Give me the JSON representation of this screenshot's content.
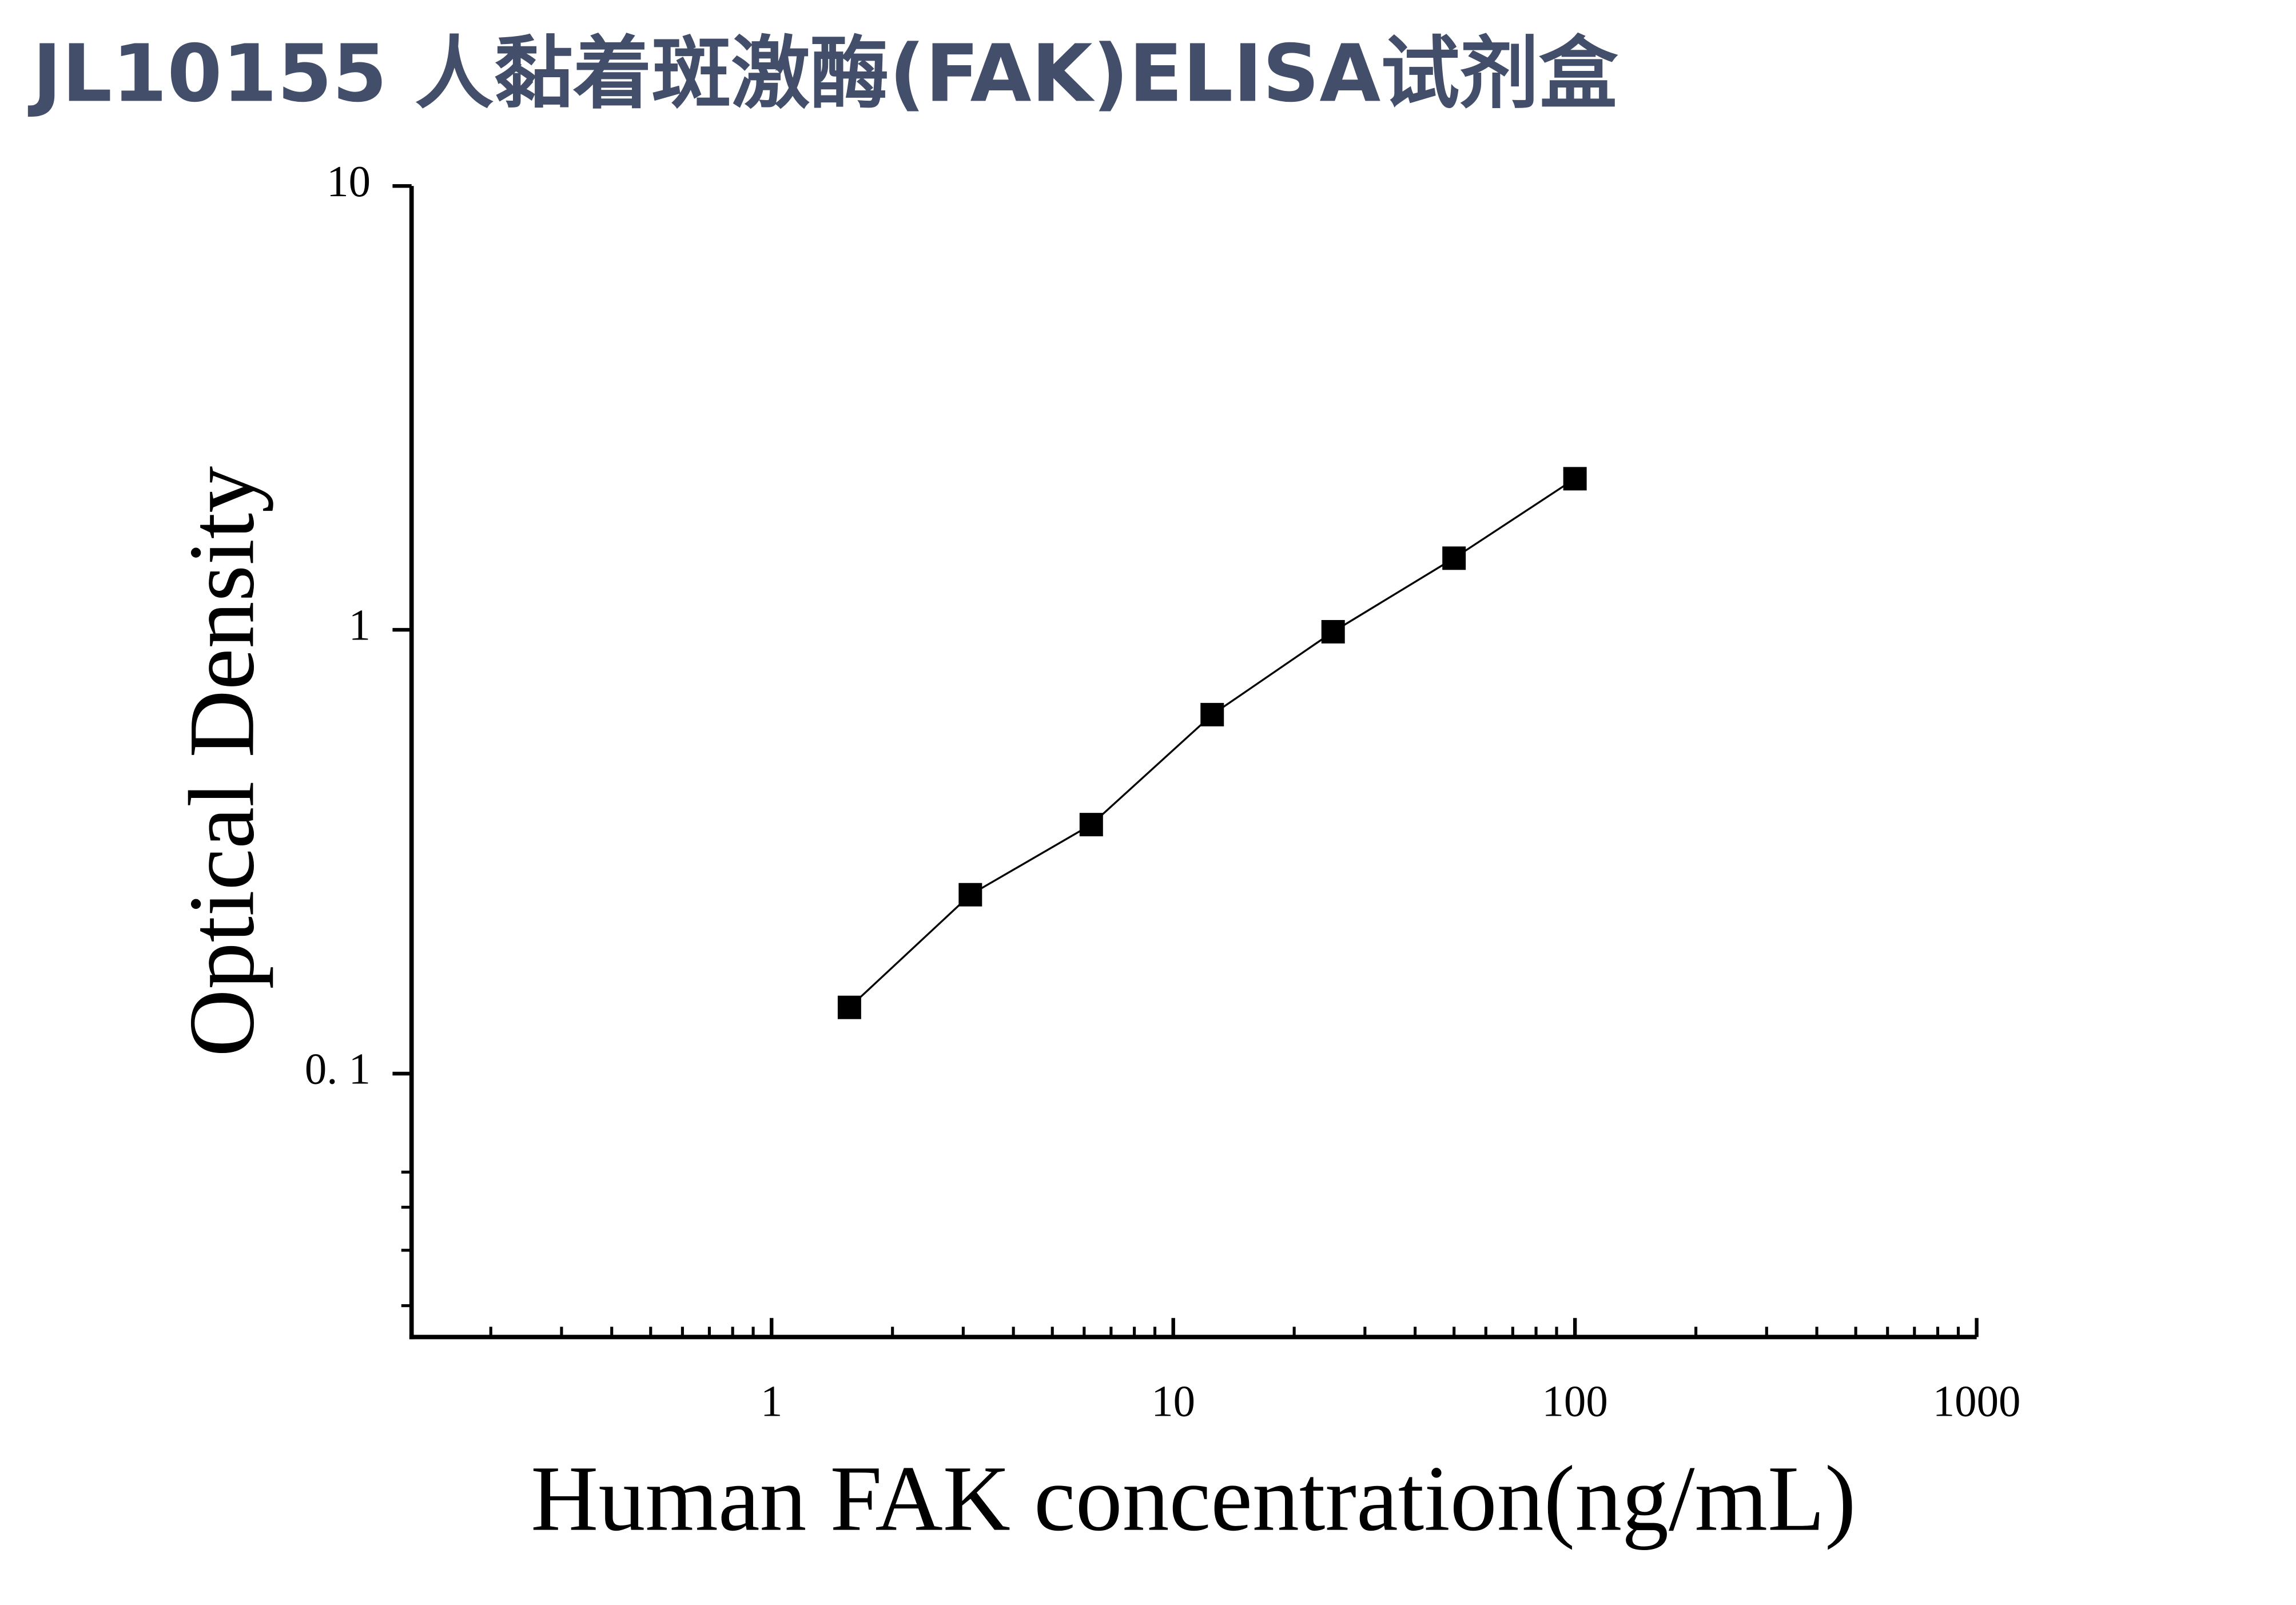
{
  "chart_data": {
    "type": "scatter",
    "title": "JL10155 人黏着斑激酶(FAK)ELISA试剂盒",
    "xlabel": "Human FAK concentration(ng/mL)",
    "ylabel": "Optical Density",
    "x": [
      1.5625,
      3.125,
      6.25,
      12.5,
      25,
      50,
      100
    ],
    "series": [
      {
        "values": [
          0.141,
          0.253,
          0.364,
          0.644,
          0.99,
          1.45,
          2.19
        ],
        "color": "#000000",
        "line": true
      }
    ],
    "xscale": "log",
    "yscale": "log",
    "xlim": [
      0.127,
      1000
    ],
    "ylim": [
      0.0255,
      10
    ],
    "xticks": [
      1,
      10,
      100,
      1000
    ],
    "yticks": [
      {
        "value": 0.1,
        "label": "0. 1"
      },
      1,
      10
    ],
    "xminor_ticks": [
      0.2,
      0.3,
      0.4,
      0.5,
      0.6,
      0.7,
      0.8,
      0.9,
      2,
      3,
      4,
      5,
      6,
      7,
      8,
      9,
      20,
      30,
      40,
      50,
      60,
      70,
      80,
      90,
      200,
      300,
      400,
      500,
      600,
      700,
      800,
      900
    ],
    "yminor_ticks": [
      0.03,
      0.04,
      0.05,
      0.06
    ],
    "grid": false
  }
}
